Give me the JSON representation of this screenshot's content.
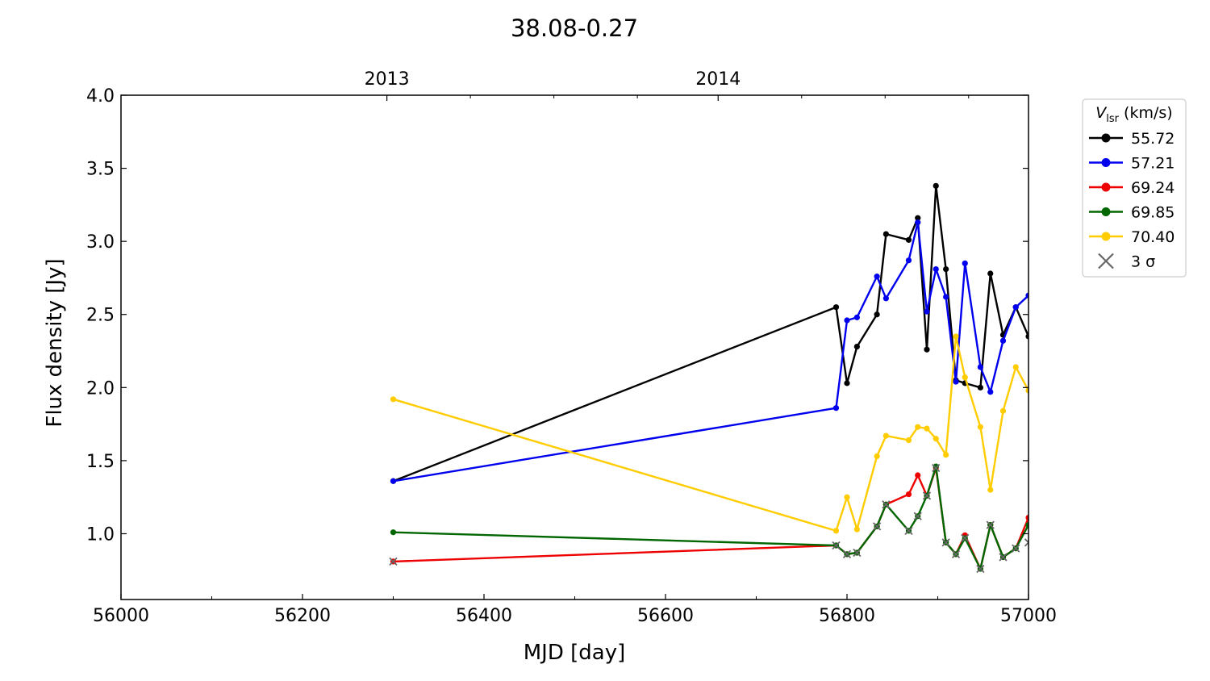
{
  "chart_data": {
    "type": "line",
    "title": "38.08-0.27",
    "xlabel": "MJD [day]",
    "ylabel": "Flux density [Jy]",
    "xlim": [
      56000,
      57000
    ],
    "ylim": [
      0.55,
      4.0
    ],
    "xticks": [
      56000,
      56200,
      56400,
      56600,
      56800,
      57000
    ],
    "yticks": [
      1.0,
      1.5,
      2.0,
      2.5,
      3.0,
      3.5,
      4.0
    ],
    "yticklabels": [
      "1.0",
      "1.5",
      "2.0",
      "2.5",
      "3.0",
      "3.5",
      "4.0"
    ],
    "top_axis": {
      "ticks": [
        56293,
        56658
      ],
      "labels": [
        "2013",
        "2014"
      ]
    },
    "legend": {
      "title_main": "V",
      "title_sub": "lsr",
      "title_unit": " (km/s)",
      "position": "outside-right-top",
      "sigma_label": "3 σ"
    },
    "series": [
      {
        "name": "55.72",
        "color": "#000000",
        "x": [
          56300,
          56788,
          56800,
          56811,
          56833,
          56843,
          56868,
          56878,
          56888,
          56898,
          56909,
          56920,
          56930,
          56947,
          56958,
          56972,
          56986,
          57000
        ],
        "y": [
          1.36,
          2.55,
          2.03,
          2.28,
          2.5,
          3.05,
          3.01,
          3.16,
          2.26,
          3.38,
          2.81,
          2.05,
          2.03,
          2.0,
          2.78,
          2.36,
          2.55,
          2.35
        ]
      },
      {
        "name": "57.21",
        "color": "#0000ee",
        "x": [
          56300,
          56788,
          56800,
          56811,
          56833,
          56843,
          56868,
          56878,
          56888,
          56898,
          56909,
          56920,
          56930,
          56947,
          56958,
          56972,
          56986,
          57000
        ],
        "y": [
          1.36,
          1.86,
          2.46,
          2.48,
          2.76,
          2.61,
          2.87,
          3.13,
          2.52,
          2.81,
          2.62,
          2.04,
          2.85,
          2.14,
          1.97,
          2.32,
          2.55,
          2.63
        ]
      },
      {
        "name": "69.24",
        "color": "#ee0000",
        "x": [
          56300,
          56788,
          56800,
          56811,
          56833,
          56843,
          56868,
          56878,
          56888,
          56898,
          56909,
          56920,
          56930,
          56947,
          56958,
          56972,
          56986,
          57000
        ],
        "y": [
          0.81,
          0.92,
          0.86,
          0.87,
          1.05,
          1.2,
          1.27,
          1.4,
          1.26,
          1.45,
          0.94,
          0.86,
          0.99,
          0.76,
          1.06,
          0.84,
          0.9,
          1.11
        ]
      },
      {
        "name": "69.85",
        "color": "#006600",
        "x": [
          56300,
          56788,
          56800,
          56811,
          56833,
          56843,
          56868,
          56878,
          56888,
          56898,
          56909,
          56920,
          56930,
          56947,
          56958,
          56972,
          56986,
          57000
        ],
        "y": [
          1.01,
          0.92,
          0.86,
          0.87,
          1.05,
          1.2,
          1.02,
          1.12,
          1.26,
          1.46,
          0.94,
          0.86,
          0.97,
          0.76,
          1.06,
          0.84,
          0.9,
          1.06
        ]
      },
      {
        "name": "70.40",
        "color": "#ffcc00",
        "x": [
          56300,
          56788,
          56800,
          56811,
          56833,
          56843,
          56868,
          56878,
          56888,
          56898,
          56909,
          56920,
          56930,
          56947,
          56958,
          56972,
          56986,
          57000
        ],
        "y": [
          1.92,
          1.02,
          1.25,
          1.03,
          1.53,
          1.67,
          1.64,
          1.73,
          1.72,
          1.65,
          1.54,
          2.35,
          2.07,
          1.73,
          1.3,
          1.84,
          2.14,
          1.98
        ]
      }
    ],
    "sigma_markers": {
      "color": "#666666",
      "x": [
        56300,
        56788,
        56800,
        56811,
        56833,
        56843,
        56868,
        56878,
        56888,
        56898,
        56909,
        56920,
        56930,
        56947,
        56958,
        56972,
        56986,
        57000
      ],
      "y": [
        0.81,
        0.92,
        0.86,
        0.87,
        1.05,
        1.2,
        1.02,
        1.12,
        1.26,
        1.45,
        0.94,
        0.86,
        0.97,
        0.76,
        1.06,
        0.84,
        0.9,
        0.94
      ]
    }
  }
}
